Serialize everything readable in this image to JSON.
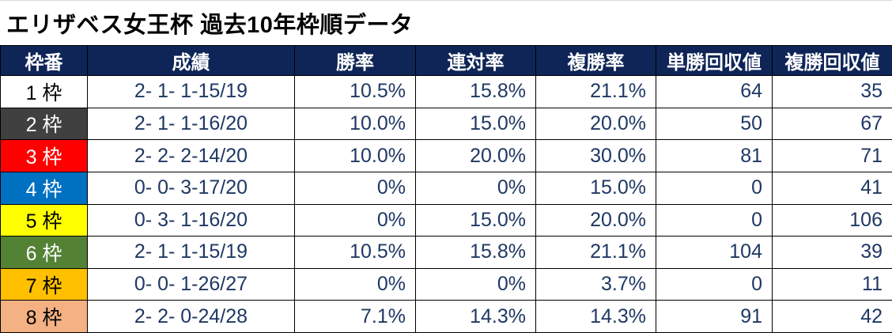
{
  "title": "エリザベス女王杯 過去10年枠順データ",
  "chart_data": {
    "type": "table",
    "title": "エリザベス女王杯 過去10年枠順データ",
    "columns": [
      "枠番",
      "成績",
      "勝率",
      "連対率",
      "複勝率",
      "単勝回収値",
      "複勝回収値"
    ],
    "rows": [
      {
        "waku": "1 枠",
        "record": "2- 1- 1-15/19",
        "win_rate": "10.5%",
        "place2_rate": "15.8%",
        "place3_rate": "21.1%",
        "win_payout": "64",
        "place_payout": "35",
        "waku_bg": "#FFFFFF",
        "waku_fg": "#000000"
      },
      {
        "waku": "2 枠",
        "record": "2- 1- 1-16/20",
        "win_rate": "10.0%",
        "place2_rate": "15.0%",
        "place3_rate": "20.0%",
        "win_payout": "50",
        "place_payout": "67",
        "waku_bg": "#404040",
        "waku_fg": "#FFFFFF"
      },
      {
        "waku": "3 枠",
        "record": "2- 2- 2-14/20",
        "win_rate": "10.0%",
        "place2_rate": "20.0%",
        "place3_rate": "30.0%",
        "win_payout": "81",
        "place_payout": "71",
        "waku_bg": "#FF0000",
        "waku_fg": "#FFFFFF"
      },
      {
        "waku": "4 枠",
        "record": "0- 0- 3-17/20",
        "win_rate": "0%",
        "place2_rate": "0%",
        "place3_rate": "15.0%",
        "win_payout": "0",
        "place_payout": "41",
        "waku_bg": "#0070C0",
        "waku_fg": "#FFFFFF"
      },
      {
        "waku": "5 枠",
        "record": "0- 3- 1-16/20",
        "win_rate": "0%",
        "place2_rate": "15.0%",
        "place3_rate": "20.0%",
        "win_payout": "0",
        "place_payout": "106",
        "waku_bg": "#FFFF00",
        "waku_fg": "#000000"
      },
      {
        "waku": "6 枠",
        "record": "2- 1- 1-15/19",
        "win_rate": "10.5%",
        "place2_rate": "15.8%",
        "place3_rate": "21.1%",
        "win_payout": "104",
        "place_payout": "39",
        "waku_bg": "#548235",
        "waku_fg": "#FFFFFF"
      },
      {
        "waku": "7 枠",
        "record": "0- 0- 1-26/27",
        "win_rate": "0%",
        "place2_rate": "0%",
        "place3_rate": "3.7%",
        "win_payout": "0",
        "place_payout": "11",
        "waku_bg": "#FFC000",
        "waku_fg": "#000000"
      },
      {
        "waku": "8 枠",
        "record": "2- 2- 0-24/28",
        "win_rate": "7.1%",
        "place2_rate": "14.3%",
        "place3_rate": "14.3%",
        "win_payout": "91",
        "place_payout": "42",
        "waku_bg": "#F4B183",
        "waku_fg": "#000000"
      }
    ]
  },
  "style": {
    "header_bg": "#0F2557",
    "header_fg": "#FFFFFF",
    "value_text_color": "#1F3864",
    "border_color": "#000000"
  }
}
